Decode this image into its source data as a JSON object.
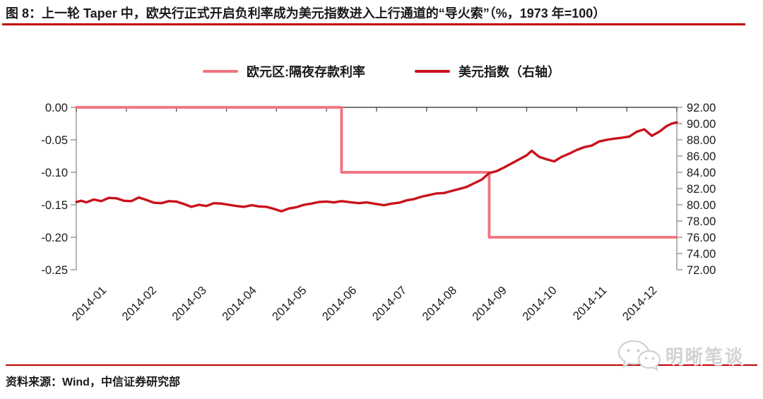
{
  "colors": {
    "rule_red": "#C00000",
    "axis_gray": "#8C8C8C",
    "zero_axis_gray": "#4D4D4D",
    "text": "#1A1A1A",
    "watermark_gray": "#D2D2D2",
    "series_pink": "#F2727E",
    "series_dark_red": "#C8121C"
  },
  "footer": {
    "source": "资料来源：Wind，中信证券研究部"
  },
  "watermark": {
    "text": "明晰笔谈",
    "icon": "wechat-logo"
  },
  "chart_data": {
    "type": "line",
    "title": "图 8：上一轮 Taper 中，欧央行正式开启负利率成为美元指数进入上行通道的“导火索”（%，1973 年=100）",
    "legend_position": "top",
    "grid": "off",
    "x_axis": {
      "months": 12,
      "start": "2014-01",
      "end": "2014-12",
      "labels": [
        "2014-01",
        "2014-02",
        "2014-03",
        "2014-04",
        "2014-05",
        "2014-06",
        "2014-07",
        "2014-08",
        "2014-09",
        "2014-10",
        "2014-11",
        "2014-12"
      ]
    },
    "left_axis": {
      "max": 0,
      "min": -0.25,
      "ticks": [
        "0.00",
        "-0.05",
        "-0.10",
        "-0.15",
        "-0.20",
        "-0.25"
      ]
    },
    "right_axis": {
      "max": 92,
      "min": 72,
      "ticks": [
        "92.00",
        "90.00",
        "88.00",
        "86.00",
        "84.00",
        "82.00",
        "80.00",
        "78.00",
        "76.00",
        "74.00",
        "72.00"
      ]
    },
    "series": [
      {
        "name": "欧元区:隔夜存款利率",
        "axis": "left",
        "style": "step",
        "color": "#F2727E",
        "points": [
          [
            0,
            0.0
          ],
          [
            5.3,
            0.0
          ],
          [
            5.3,
            -0.1
          ],
          [
            8.25,
            -0.1
          ],
          [
            8.25,
            -0.2
          ],
          [
            12,
            -0.2
          ]
        ]
      },
      {
        "name": "美元指数（右轴）",
        "axis": "right",
        "style": "line",
        "color": "#C8121C",
        "points": [
          [
            0,
            80.35
          ],
          [
            0.1,
            80.5
          ],
          [
            0.2,
            80.3
          ],
          [
            0.35,
            80.65
          ],
          [
            0.5,
            80.45
          ],
          [
            0.65,
            80.85
          ],
          [
            0.8,
            80.8
          ],
          [
            0.95,
            80.5
          ],
          [
            1.1,
            80.45
          ],
          [
            1.25,
            80.9
          ],
          [
            1.4,
            80.6
          ],
          [
            1.55,
            80.25
          ],
          [
            1.7,
            80.2
          ],
          [
            1.85,
            80.45
          ],
          [
            2,
            80.4
          ],
          [
            2.15,
            80.1
          ],
          [
            2.3,
            79.75
          ],
          [
            2.45,
            80
          ],
          [
            2.6,
            79.85
          ],
          [
            2.75,
            80.2
          ],
          [
            2.9,
            80.15
          ],
          [
            3.05,
            80
          ],
          [
            3.2,
            79.85
          ],
          [
            3.35,
            79.75
          ],
          [
            3.5,
            79.95
          ],
          [
            3.65,
            79.8
          ],
          [
            3.8,
            79.75
          ],
          [
            3.95,
            79.5
          ],
          [
            4.1,
            79.2
          ],
          [
            4.25,
            79.55
          ],
          [
            4.4,
            79.7
          ],
          [
            4.55,
            80
          ],
          [
            4.7,
            80.15
          ],
          [
            4.85,
            80.35
          ],
          [
            5,
            80.4
          ],
          [
            5.15,
            80.3
          ],
          [
            5.3,
            80.45
          ],
          [
            5.5,
            80.3
          ],
          [
            5.65,
            80.2
          ],
          [
            5.8,
            80.3
          ],
          [
            6,
            80.1
          ],
          [
            6.15,
            79.95
          ],
          [
            6.3,
            80.15
          ],
          [
            6.45,
            80.25
          ],
          [
            6.6,
            80.55
          ],
          [
            6.75,
            80.7
          ],
          [
            6.9,
            81
          ],
          [
            7.05,
            81.2
          ],
          [
            7.2,
            81.4
          ],
          [
            7.35,
            81.45
          ],
          [
            7.5,
            81.7
          ],
          [
            7.65,
            81.95
          ],
          [
            7.8,
            82.2
          ],
          [
            7.95,
            82.65
          ],
          [
            8.1,
            83.1
          ],
          [
            8.25,
            83.9
          ],
          [
            8.4,
            84.15
          ],
          [
            8.55,
            84.6
          ],
          [
            8.7,
            85.1
          ],
          [
            8.85,
            85.6
          ],
          [
            9,
            86.1
          ],
          [
            9.1,
            86.65
          ],
          [
            9.25,
            85.9
          ],
          [
            9.4,
            85.6
          ],
          [
            9.55,
            85.35
          ],
          [
            9.7,
            85.9
          ],
          [
            9.85,
            86.3
          ],
          [
            10,
            86.75
          ],
          [
            10.15,
            87.1
          ],
          [
            10.3,
            87.3
          ],
          [
            10.45,
            87.8
          ],
          [
            10.6,
            88
          ],
          [
            10.75,
            88.15
          ],
          [
            10.9,
            88.25
          ],
          [
            11.05,
            88.4
          ],
          [
            11.2,
            89
          ],
          [
            11.35,
            89.3
          ],
          [
            11.5,
            88.5
          ],
          [
            11.65,
            89
          ],
          [
            11.8,
            89.7
          ],
          [
            11.9,
            90
          ],
          [
            12,
            90.15
          ]
        ]
      }
    ]
  }
}
